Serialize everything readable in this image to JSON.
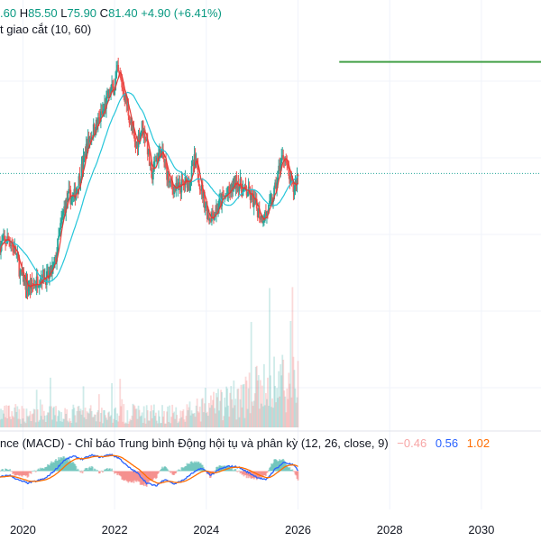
{
  "legend": {
    "ohlc": {
      "o_label": "",
      "o_value": ".60",
      "h_label": "H",
      "h_value": "85.50",
      "l_label": "L",
      "l_value": "75.90",
      "c_label": "C",
      "c_value": "81.40",
      "change": "+4.90 (+6.41%)"
    },
    "ma": "t giao cắt (10, 60)",
    "macd_title": "nce (MACD) - Chỉ báo Trung bình Động hội tụ và phân kỳ (12, 26, close, 9)",
    "macd_values": [
      "−0.46",
      "0.56",
      "1.02"
    ]
  },
  "colors": {
    "up": "#26a69a",
    "down": "#ef5350",
    "fast_ma": "#e53935",
    "slow_ma": "#26c6da",
    "macd": "#2962ff",
    "signal": "#ff6d00",
    "level": "#43a047",
    "price_line": "#26a69a",
    "grid": "#f0f3fa"
  },
  "chart_data": {
    "type": "candlestick",
    "x_ticks": [
      "2020",
      "2022",
      "2024",
      "2026",
      "2028",
      "2030"
    ],
    "x_range": [
      2019.5,
      2031.3
    ],
    "y_range": [
      20,
      125
    ],
    "grid": true,
    "last_price": 81.4,
    "level_line": {
      "value": 118,
      "from": 2026.9,
      "to": 2031.3
    },
    "price_points": [
      [
        2019.5,
        58
      ],
      [
        2019.7,
        60
      ],
      [
        2019.85,
        55
      ],
      [
        2019.95,
        48
      ],
      [
        2020.1,
        44
      ],
      [
        2020.25,
        45
      ],
      [
        2020.4,
        48
      ],
      [
        2020.55,
        47
      ],
      [
        2020.7,
        52
      ],
      [
        2020.8,
        62
      ],
      [
        2020.9,
        70
      ],
      [
        2021.0,
        74
      ],
      [
        2021.1,
        73
      ],
      [
        2021.2,
        78
      ],
      [
        2021.3,
        84
      ],
      [
        2021.4,
        91
      ],
      [
        2021.55,
        96
      ],
      [
        2021.7,
        100
      ],
      [
        2021.8,
        104
      ],
      [
        2021.9,
        108
      ],
      [
        2022.0,
        110
      ],
      [
        2022.05,
        115
      ],
      [
        2022.15,
        111
      ],
      [
        2022.25,
        105
      ],
      [
        2022.35,
        98
      ],
      [
        2022.45,
        90
      ],
      [
        2022.6,
        97
      ],
      [
        2022.7,
        92
      ],
      [
        2022.8,
        80
      ],
      [
        2022.9,
        86
      ],
      [
        2023.0,
        89
      ],
      [
        2023.1,
        84
      ],
      [
        2023.2,
        78
      ],
      [
        2023.35,
        76
      ],
      [
        2023.5,
        78
      ],
      [
        2023.65,
        80
      ],
      [
        2023.75,
        86
      ],
      [
        2023.85,
        79
      ],
      [
        2023.95,
        73
      ],
      [
        2024.05,
        67
      ],
      [
        2024.2,
        69
      ],
      [
        2024.35,
        73
      ],
      [
        2024.5,
        75
      ],
      [
        2024.65,
        79
      ],
      [
        2024.8,
        76
      ],
      [
        2024.9,
        75
      ],
      [
        2025.0,
        73
      ],
      [
        2025.1,
        70
      ],
      [
        2025.2,
        67
      ],
      [
        2025.3,
        68
      ],
      [
        2025.4,
        71
      ],
      [
        2025.5,
        76
      ],
      [
        2025.6,
        84
      ],
      [
        2025.7,
        88
      ],
      [
        2025.8,
        80
      ],
      [
        2025.9,
        76
      ],
      [
        2026.0,
        81.4
      ]
    ],
    "macd_points": [
      [
        2019.5,
        -0.3
      ],
      [
        2019.7,
        -0.2
      ],
      [
        2019.9,
        -0.45
      ],
      [
        2020.1,
        -0.6
      ],
      [
        2020.3,
        -0.5
      ],
      [
        2020.5,
        -0.35
      ],
      [
        2020.7,
        0.05
      ],
      [
        2020.9,
        0.55
      ],
      [
        2021.1,
        0.75
      ],
      [
        2021.3,
        0.6
      ],
      [
        2021.5,
        0.8
      ],
      [
        2021.7,
        0.7
      ],
      [
        2021.9,
        0.85
      ],
      [
        2022.1,
        0.65
      ],
      [
        2022.3,
        0.2
      ],
      [
        2022.5,
        -0.1
      ],
      [
        2022.7,
        -0.6
      ],
      [
        2022.9,
        -0.75
      ],
      [
        2023.1,
        -0.4
      ],
      [
        2023.3,
        -0.65
      ],
      [
        2023.5,
        -0.45
      ],
      [
        2023.7,
        -0.1
      ],
      [
        2023.9,
        0.15
      ],
      [
        2024.1,
        -0.2
      ],
      [
        2024.3,
        0.1
      ],
      [
        2024.5,
        0.25
      ],
      [
        2024.7,
        0.2
      ],
      [
        2024.9,
        -0.05
      ],
      [
        2025.1,
        -0.3
      ],
      [
        2025.3,
        -0.45
      ],
      [
        2025.5,
        0.1
      ],
      [
        2025.7,
        0.45
      ],
      [
        2025.9,
        0.3
      ],
      [
        2026.0,
        0.05
      ]
    ]
  }
}
